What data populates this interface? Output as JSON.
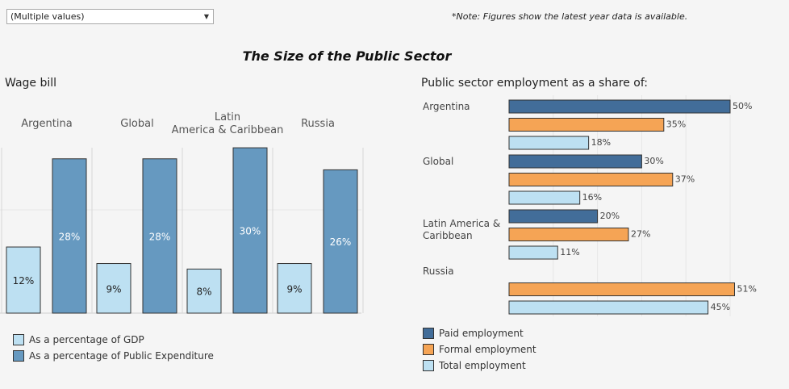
{
  "filter": {
    "value": "(Multiple values)"
  },
  "note": "*Note: Figures show the latest year data is available.",
  "title": "The Size of the Public Sector",
  "colors": {
    "gdp": "#bde0f2",
    "expenditure": "#6699c0",
    "paid": "#426d99",
    "formal": "#f5a455",
    "total": "#bde0f2"
  },
  "chart_data": [
    {
      "type": "bar",
      "title": "Wage bill",
      "categories": [
        "Argentina",
        "Global",
        "Latin America & Caribbean",
        "Russia"
      ],
      "series": [
        {
          "name": "As a percentage of GDP",
          "values": [
            12,
            9,
            8,
            9
          ]
        },
        {
          "name": "As a percentage of Public Expenditure",
          "values": [
            28,
            28,
            30,
            26
          ]
        }
      ],
      "ylim": [
        0,
        32
      ],
      "unit": "%"
    },
    {
      "type": "bar",
      "orientation": "horizontal",
      "title": "Public sector employment as a share of:",
      "categories": [
        "Argentina",
        "Global",
        "Latin America & Caribbean",
        "Russia"
      ],
      "series": [
        {
          "name": "Paid employment",
          "values": [
            50,
            30,
            20,
            null
          ]
        },
        {
          "name": "Formal employment",
          "values": [
            35,
            37,
            27,
            51
          ]
        },
        {
          "name": "Total employment",
          "values": [
            18,
            16,
            11,
            45
          ]
        }
      ],
      "xlim": [
        0,
        55
      ],
      "unit": "%"
    }
  ]
}
